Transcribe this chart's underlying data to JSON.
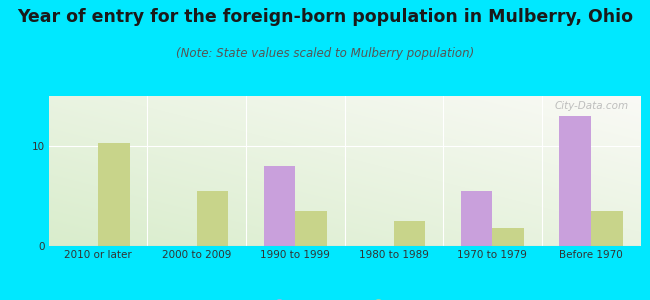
{
  "title": "Year of entry for the foreign-born population in Mulberry, Ohio",
  "subtitle": "(Note: State values scaled to Mulberry population)",
  "categories": [
    "2010 or later",
    "2000 to 2009",
    "1990 to 1999",
    "1980 to 1989",
    "1970 to 1979",
    "Before 1970"
  ],
  "mulberry": [
    0,
    0,
    8.0,
    0,
    5.5,
    13.0
  ],
  "ohio": [
    10.3,
    5.5,
    3.5,
    2.5,
    1.8,
    3.5
  ],
  "mulberry_color": "#c9a0dc",
  "ohio_color": "#c8d48a",
  "background_outer": "#00e8ff",
  "ylim": [
    0,
    15
  ],
  "yticks": [
    0,
    10
  ],
  "bar_width": 0.32,
  "title_fontsize": 12.5,
  "subtitle_fontsize": 8.5,
  "tick_fontsize": 7.5,
  "legend_fontsize": 9,
  "watermark": "City-Data.com"
}
